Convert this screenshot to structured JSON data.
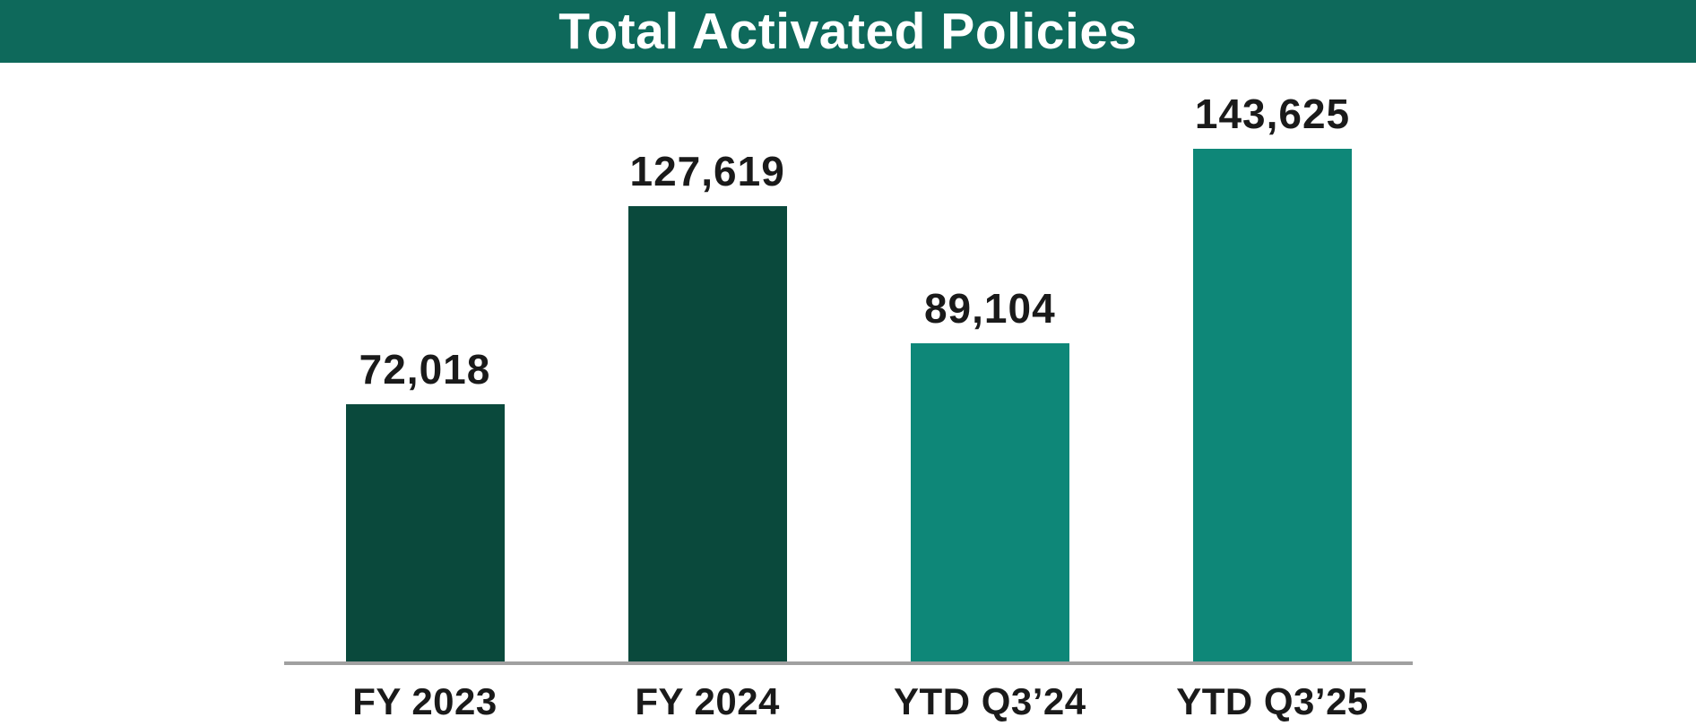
{
  "header": {
    "title": "Total Activated Policies",
    "background_color": "#0E695B",
    "text_color": "#FFFFFF"
  },
  "chart_data": {
    "type": "bar",
    "title": "Total Activated Policies",
    "categories": [
      "FY 2023",
      "FY 2024",
      "YTD Q3’24",
      "YTD Q3’25"
    ],
    "values": [
      72018,
      127619,
      89104,
      143625
    ],
    "value_labels": [
      "72,018",
      "127,619",
      "89,104",
      "143,625"
    ],
    "series": [
      {
        "name": "Total Activated Policies",
        "values": [
          72018,
          127619,
          89104,
          143625
        ]
      }
    ],
    "bar_colors": [
      "#0A493C",
      "#0A493C",
      "#0E8778",
      "#0E8778"
    ],
    "xlabel": "",
    "ylabel": "",
    "ylim": [
      0,
      150000
    ],
    "grid": false,
    "legend": false,
    "y_axis_visible": false,
    "x_axis_line_color": "#A0A0A0",
    "value_label_color": "#1A1A1A",
    "category_label_color": "#1A1A1A"
  }
}
